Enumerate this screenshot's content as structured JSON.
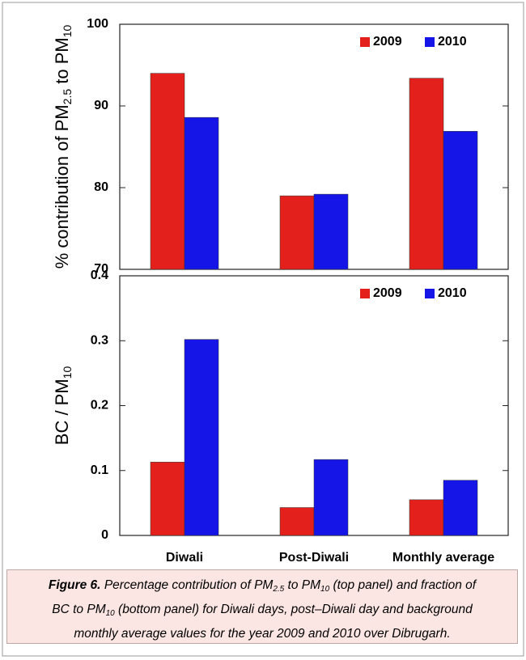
{
  "chart_data": [
    {
      "type": "bar",
      "ylabel": [
        "% contribution of PM",
        "2.5",
        " to PM",
        "10"
      ],
      "categories": [
        null,
        null,
        null
      ],
      "series": [
        {
          "name": "2009",
          "color": "#e3201b",
          "values": [
            94.0,
            79.0,
            93.4
          ]
        },
        {
          "name": "2010",
          "color": "#1515e8",
          "values": [
            88.6,
            79.2,
            86.9
          ]
        }
      ],
      "ylim": [
        70,
        100
      ],
      "yticks": [
        70,
        80,
        90,
        100
      ],
      "legend": "upper right"
    },
    {
      "type": "bar",
      "ylabel": [
        "BC / PM",
        "10"
      ],
      "categories": [
        "Diwali",
        "Post-Diwali",
        "Monthly average"
      ],
      "series": [
        {
          "name": "2009",
          "color": "#e3201b",
          "values": [
            0.113,
            0.043,
            0.055
          ]
        },
        {
          "name": "2010",
          "color": "#1515e8",
          "values": [
            0.302,
            0.117,
            0.085
          ]
        }
      ],
      "ylim": [
        0,
        0.4
      ],
      "yticks": [
        0,
        0.1,
        0.2,
        0.3,
        0.4
      ],
      "legend": "upper right"
    }
  ],
  "caption": {
    "label": "Figure 6.",
    "lines": [
      [
        "Percentage contribution of PM",
        "2.5",
        " to PM",
        "10",
        " (top panel) and fraction of"
      ],
      [
        "BC to PM",
        "10",
        " (bottom panel) for Diwali days, post–Diwali day and background"
      ],
      [
        "monthly average values for the year 2009 and 2010 over Dibrugarh."
      ]
    ]
  }
}
